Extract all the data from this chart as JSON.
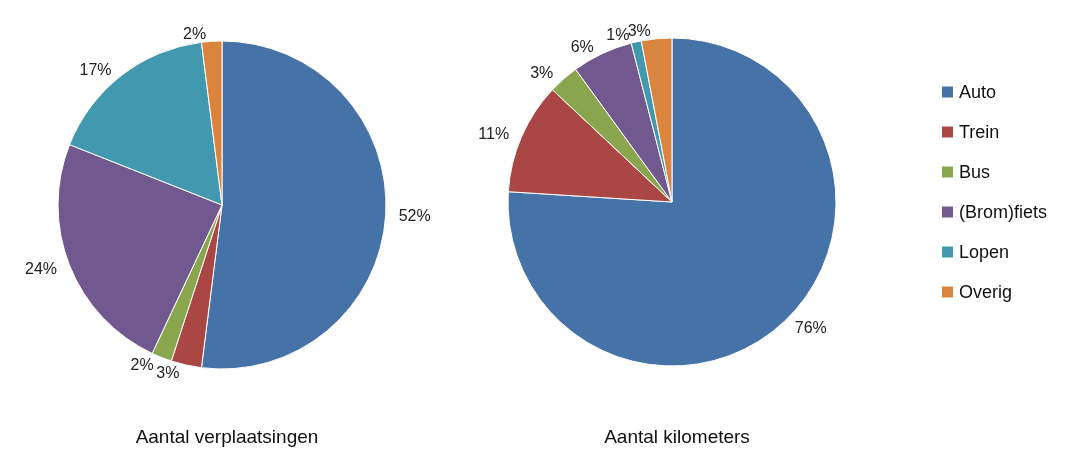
{
  "chart_data": [
    {
      "type": "pie",
      "title": "Aantal verplaatsingen",
      "categories": [
        null,
        null,
        null,
        null,
        null,
        null
      ],
      "values": [
        52,
        3,
        2,
        24,
        17,
        2
      ],
      "value_labels": [
        "52%",
        "3%",
        "2%",
        "24%",
        "17%",
        "2%"
      ],
      "colors": [
        "#4572a7",
        "#aa4643",
        "#89a54e",
        "#71588f",
        "#4198af",
        "#db843d"
      ],
      "legend": false
    },
    {
      "type": "pie",
      "title": "Aantal kilometers",
      "categories": [
        "Auto",
        "Trein",
        "Bus",
        "(Brom)fiets",
        "Lopen",
        "Overig"
      ],
      "values": [
        76,
        11,
        3,
        6,
        1,
        3
      ],
      "value_labels": [
        "76%",
        "11%",
        "3%",
        "6%",
        "1%",
        "3%"
      ],
      "colors": [
        "#4572a7",
        "#aa4643",
        "#89a54e",
        "#71588f",
        "#4198af",
        "#db843d"
      ],
      "legend": "right"
    }
  ]
}
